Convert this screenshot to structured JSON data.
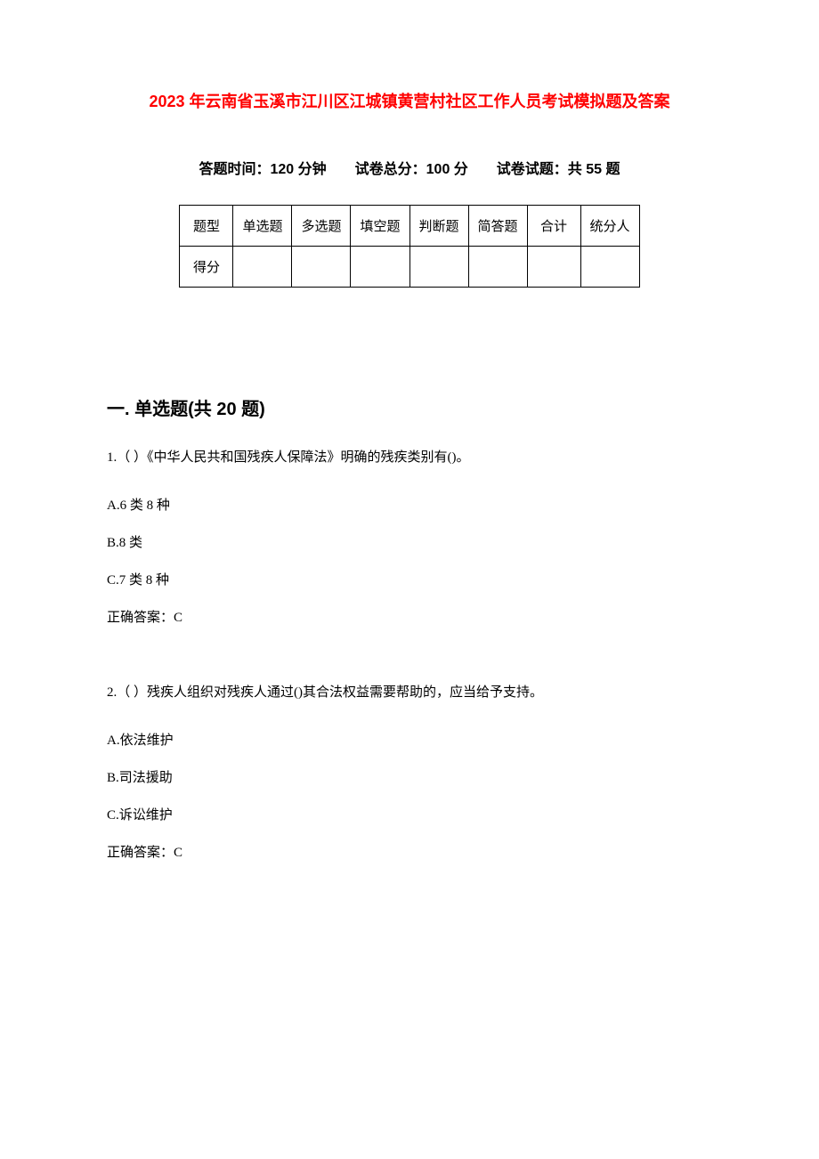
{
  "document": {
    "title": "2023 年云南省玉溪市江川区江城镇黄营村社区工作人员考试模拟题及答案",
    "subtitle": "答题时间：120 分钟　　试卷总分：100 分　　试卷试题：共 55 题",
    "title_color": "#ff0000",
    "title_fontsize": 18,
    "subtitle_fontsize": 16,
    "body_fontsize": 15,
    "section_fontsize": 20,
    "background_color": "#ffffff",
    "text_color": "#000000",
    "border_color": "#000000"
  },
  "score_table": {
    "headers": [
      "题型",
      "单选题",
      "多选题",
      "填空题",
      "判断题",
      "简答题",
      "合计",
      "统分人"
    ],
    "row_label": "得分",
    "cell_padding": 12,
    "cell_min_width": 60
  },
  "sections": {
    "section1": {
      "title": "一. 单选题(共 20 题)"
    }
  },
  "questions": {
    "q1": {
      "text": "1.（ ）《中华人民共和国残疾人保障法》明确的残疾类别有()。",
      "options": {
        "a": "A.6 类 8 种",
        "b": "B.8 类",
        "c": "C.7 类 8 种"
      },
      "answer": "正确答案：C"
    },
    "q2": {
      "text": "2.（ ）残疾人组织对残疾人通过()其合法权益需要帮助的，应当给予支持。",
      "options": {
        "a": "A.依法维护",
        "b": "B.司法援助",
        "c": "C.诉讼维护"
      },
      "answer": "正确答案：C"
    }
  }
}
